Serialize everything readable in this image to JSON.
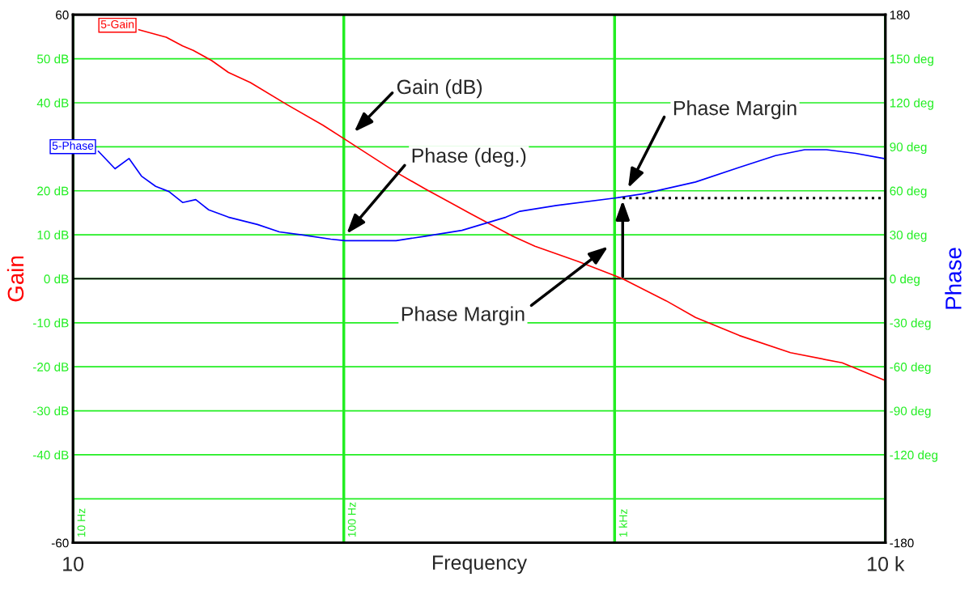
{
  "chart_data": {
    "type": "line",
    "xlabel": "Frequency",
    "ylabel": "Gain",
    "y2label": "Phase",
    "log": "x",
    "grid": true,
    "marker": "none",
    "line_style": "solid",
    "xlim": [
      10,
      10000
    ],
    "xticks": [
      10,
      {
        "value": 100,
        "label": null
      },
      {
        "value": 1000,
        "label": null
      },
      {
        "value": 10000,
        "label": "10 k"
      }
    ],
    "ylim": [
      -60,
      60
    ],
    "yticks": [
      {
        "value": -60,
        "label": "-60"
      },
      {
        "value": -50,
        "label": null
      },
      {
        "value": -40,
        "label": "-40 dB"
      },
      {
        "value": -30,
        "label": "-30 dB"
      },
      {
        "value": -20,
        "label": "-20 dB"
      },
      {
        "value": -10,
        "label": "-10 dB"
      },
      {
        "value": 0,
        "label": "0 dB"
      },
      {
        "value": 10,
        "label": "10 dB"
      },
      {
        "value": 20,
        "label": "20 dB"
      },
      {
        "value": 30,
        "label": null
      },
      {
        "value": 40,
        "label": "40 dB"
      },
      {
        "value": 50,
        "label": "50 dB"
      },
      {
        "value": 60,
        "label": "60"
      }
    ],
    "y2lim": [
      -180,
      180
    ],
    "y2ticks": [
      {
        "value": -180,
        "label": "-180"
      },
      {
        "value": -150,
        "label": null
      },
      {
        "value": -120,
        "label": "-120 deg"
      },
      {
        "value": -90,
        "label": "-90 deg"
      },
      {
        "value": -60,
        "label": "-60 deg"
      },
      {
        "value": -30,
        "label": "-30 deg"
      },
      {
        "value": 0,
        "label": "0 deg"
      },
      {
        "value": 30,
        "label": "30 deg"
      },
      {
        "value": 60,
        "label": "60 deg"
      },
      {
        "value": 90,
        "label": "90 deg"
      },
      {
        "value": 120,
        "label": "120 deg"
      },
      {
        "value": 150,
        "label": "150 deg"
      },
      {
        "value": 180,
        "label": "180"
      }
    ],
    "ref_lines": [
      {
        "axis": "y",
        "value": 0,
        "color": "#000000",
        "line_style": "solid"
      }
    ],
    "series": [
      {
        "name": "5-Gain",
        "color": "#ff0000",
        "x": [
          17.5,
          22.1,
          25.4,
          27.8,
          32.5,
          37.5,
          45.2,
          61.6,
          83.8,
          101,
          156,
          200,
          290,
          420,
          508,
          736,
          1071,
          1550,
          1990,
          2890,
          4460,
          6920,
          9880
        ],
        "values": [
          56.6,
          54.9,
          52.9,
          51.9,
          49.6,
          46.9,
          44.6,
          39.6,
          34.9,
          31.7,
          24.2,
          20.4,
          15.0,
          9.7,
          7.4,
          3.9,
          0,
          -5.0,
          -8.8,
          -12.9,
          -16.8,
          -19.1,
          -23.0
        ]
      },
      {
        "name": "5-Phase",
        "color": "#0000ff",
        "axis": "y2",
        "x": [
          12.4,
          14.3,
          16.1,
          17.9,
          20.2,
          22.6,
          25.4,
          28.4,
          31.7,
          37.5,
          48.0,
          57.8,
          69.7,
          89.5,
          101,
          156,
          200,
          273,
          397,
          447,
          610,
          1000,
          1280,
          1990,
          2890,
          3930,
          5030,
          6060,
          7770,
          9880
        ],
        "values": [
          87,
          75,
          82,
          70,
          63,
          59.5,
          52,
          54,
          47,
          42,
          37,
          32,
          30,
          27,
          26,
          26,
          29,
          33,
          42,
          46,
          50,
          55,
          58,
          66,
          76,
          84,
          88,
          88,
          85.5,
          82
        ]
      },
      {
        "color": "#000000",
        "axis": "y2",
        "line_style": "dotted",
        "x": [
          1071,
          10000
        ],
        "values": [
          55,
          55
        ]
      }
    ],
    "annotations": [
      "Gain (dB)",
      "Phase (deg.)",
      "Phase Margin",
      "Phase Margin",
      "10 Hz",
      "100 Hz",
      "1 kHz"
    ]
  }
}
